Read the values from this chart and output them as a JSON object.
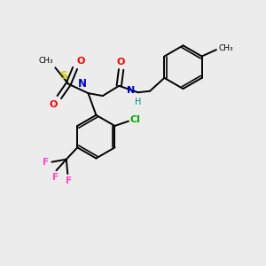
{
  "bg_color": "#ececec",
  "bond_color": "#000000",
  "atom_colors": {
    "O": "#ff0000",
    "N": "#0000cc",
    "S": "#cccc00",
    "Cl": "#00aa00",
    "F": "#ff44cc",
    "H": "#008888"
  },
  "figsize": [
    3.0,
    3.0
  ],
  "dpi": 100
}
